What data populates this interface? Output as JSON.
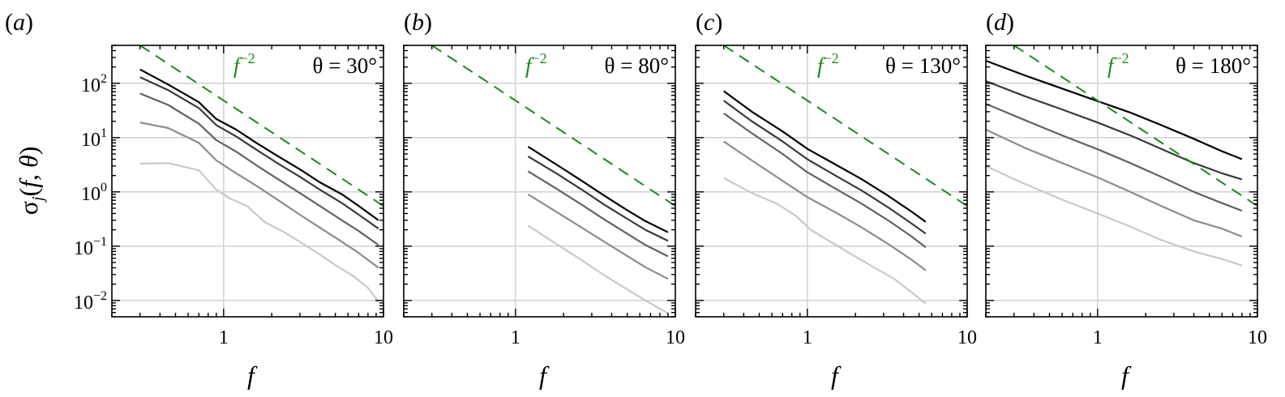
{
  "figure": {
    "ylabel": "σj(f, θ)",
    "xlabel": "f"
  },
  "colors": {
    "reference_line": "#1a8a1a",
    "series": [
      "#000000",
      "#3a3a3a",
      "#626262",
      "#8c8c8c",
      "#c9c9c9"
    ],
    "grid": "#d4d4d4"
  },
  "chart_data": [
    {
      "type": "line",
      "panel_label": "(a)",
      "theta_label": "θ = 30°",
      "ref_label": "f−2",
      "xlabel": "f",
      "ylabel": "σj(f, θ)",
      "xscale": "log",
      "yscale": "log",
      "xlim": [
        0.2,
        10
      ],
      "ylim": [
        0.005,
        500
      ],
      "xticks": [
        1,
        10
      ],
      "xtick_labels": [
        "1",
        "10"
      ],
      "yticks": [
        0.01,
        0.1,
        1,
        10,
        100
      ],
      "ytick_labels": [
        [
          "10",
          "−2"
        ],
        [
          "10",
          "−1"
        ],
        [
          "10",
          "0"
        ],
        [
          "10",
          "1"
        ],
        [
          "10",
          "2"
        ]
      ],
      "grid": true,
      "reference": {
        "label": "f−2",
        "exponent": -2,
        "points": [
          [
            0.3,
            500
          ],
          [
            10,
            0.55
          ]
        ]
      },
      "series": [
        {
          "x": [
            0.3,
            0.45,
            0.7,
            0.9,
            1.2,
            1.6,
            2.2,
            3.0,
            4.0,
            5.5,
            7.0,
            9.3
          ],
          "y": [
            180,
            95,
            45,
            22,
            14,
            8,
            4.5,
            2.6,
            1.5,
            0.9,
            0.55,
            0.3
          ]
        },
        {
          "x": [
            0.3,
            0.45,
            0.7,
            0.9,
            1.2,
            1.6,
            2.2,
            3.0,
            4.0,
            5.5,
            7.0,
            9.3
          ],
          "y": [
            130,
            75,
            35,
            17,
            10.5,
            6,
            3.3,
            1.9,
            1.1,
            0.62,
            0.38,
            0.21
          ]
        },
        {
          "x": [
            0.3,
            0.45,
            0.7,
            0.9,
            1.2,
            1.6,
            2.2,
            3.0,
            4.0,
            5.5,
            7.0,
            9.3
          ],
          "y": [
            65,
            40,
            18,
            9,
            5.5,
            3.1,
            1.7,
            0.95,
            0.55,
            0.3,
            0.19,
            0.105
          ]
        },
        {
          "x": [
            0.3,
            0.45,
            0.7,
            0.9,
            1.2,
            1.6,
            2.2,
            3.0,
            4.0,
            5.5,
            7.0,
            9.3
          ],
          "y": [
            19,
            15,
            8,
            3.8,
            2.2,
            1.3,
            0.7,
            0.38,
            0.22,
            0.12,
            0.075,
            0.04
          ]
        },
        {
          "x": [
            0.3,
            0.45,
            0.7,
            0.9,
            1.1,
            1.4,
            1.8,
            2.4,
            3.0,
            4.0,
            5.0,
            6.5,
            8.0,
            9.3
          ],
          "y": [
            3.3,
            3.4,
            2.5,
            1.1,
            0.75,
            0.55,
            0.28,
            0.18,
            0.12,
            0.07,
            0.045,
            0.028,
            0.017,
            0.0095
          ]
        }
      ]
    },
    {
      "type": "line",
      "panel_label": "(b)",
      "theta_label": "θ = 80°",
      "ref_label": "f−2",
      "xlabel": "f",
      "xscale": "log",
      "yscale": "log",
      "xlim": [
        0.2,
        10
      ],
      "ylim": [
        0.005,
        500
      ],
      "xticks": [
        1,
        10
      ],
      "xtick_labels": [
        "1",
        "10"
      ],
      "grid": true,
      "reference": {
        "label": "f−2",
        "exponent": -2,
        "points": [
          [
            0.3,
            500
          ],
          [
            10,
            0.55
          ]
        ]
      },
      "series": [
        {
          "x": [
            1.2,
            1.8,
            2.6,
            3.6,
            5.0,
            6.5,
            9.0
          ],
          "y": [
            6.8,
            3.2,
            1.6,
            0.85,
            0.46,
            0.29,
            0.18
          ]
        },
        {
          "x": [
            1.2,
            1.8,
            2.6,
            3.6,
            5.0,
            6.5,
            9.0
          ],
          "y": [
            4.5,
            2.2,
            1.1,
            0.58,
            0.32,
            0.2,
            0.125
          ]
        },
        {
          "x": [
            1.2,
            1.8,
            2.6,
            3.6,
            5.0,
            6.5,
            9.0
          ],
          "y": [
            2.4,
            1.15,
            0.58,
            0.31,
            0.17,
            0.105,
            0.065
          ]
        },
        {
          "x": [
            1.2,
            1.8,
            2.6,
            3.6,
            5.0,
            6.5,
            9.0
          ],
          "y": [
            0.9,
            0.43,
            0.22,
            0.12,
            0.066,
            0.041,
            0.025
          ]
        },
        {
          "x": [
            1.2,
            1.8,
            2.6,
            3.6,
            5.0,
            6.5,
            9.0
          ],
          "y": [
            0.24,
            0.11,
            0.055,
            0.029,
            0.016,
            0.01,
            0.0058
          ]
        }
      ]
    },
    {
      "type": "line",
      "panel_label": "(c)",
      "theta_label": "θ = 130°",
      "ref_label": "f−2",
      "xlabel": "f",
      "xscale": "log",
      "yscale": "log",
      "xlim": [
        0.2,
        10
      ],
      "ylim": [
        0.005,
        500
      ],
      "xticks": [
        1,
        10
      ],
      "xtick_labels": [
        "1",
        "10"
      ],
      "grid": true,
      "reference": {
        "label": "f−2",
        "exponent": -2,
        "points": [
          [
            0.3,
            500
          ],
          [
            10,
            0.55
          ]
        ]
      },
      "series": [
        {
          "x": [
            0.3,
            0.45,
            0.7,
            1.0,
            1.5,
            2.2,
            3.2,
            4.5,
            5.5
          ],
          "y": [
            72,
            30,
            13,
            6.2,
            3.2,
            1.7,
            0.85,
            0.43,
            0.28
          ]
        },
        {
          "x": [
            0.3,
            0.45,
            0.7,
            1.0,
            1.5,
            2.2,
            3.2,
            4.5,
            5.5
          ],
          "y": [
            48,
            20,
            8.5,
            4.0,
            2.0,
            1.05,
            0.52,
            0.26,
            0.17
          ]
        },
        {
          "x": [
            0.3,
            0.45,
            0.7,
            1.0,
            1.5,
            2.2,
            3.2,
            4.5,
            5.5
          ],
          "y": [
            28,
            12,
            5,
            2.3,
            1.15,
            0.6,
            0.3,
            0.15,
            0.095
          ]
        },
        {
          "x": [
            0.3,
            0.45,
            0.7,
            1.0,
            1.5,
            2.2,
            3.2,
            4.5,
            5.5
          ],
          "y": [
            8.5,
            3.8,
            1.6,
            0.8,
            0.42,
            0.22,
            0.11,
            0.056,
            0.036
          ]
        },
        {
          "x": [
            0.3,
            0.45,
            0.65,
            0.85,
            1.05,
            1.4,
            1.9,
            2.6,
            3.5,
            4.5,
            5.5
          ],
          "y": [
            1.8,
            0.95,
            0.6,
            0.36,
            0.2,
            0.12,
            0.07,
            0.041,
            0.025,
            0.014,
            0.0088
          ]
        }
      ]
    },
    {
      "type": "line",
      "panel_label": "(d)",
      "theta_label": "θ = 180°",
      "ref_label": "f−2",
      "xlabel": "f",
      "xscale": "log",
      "yscale": "log",
      "xlim": [
        0.2,
        10
      ],
      "ylim": [
        0.005,
        500
      ],
      "xticks": [
        1,
        10
      ],
      "xtick_labels": [
        "1",
        "10"
      ],
      "grid": true,
      "reference": {
        "label": "f−2",
        "exponent": -2,
        "points": [
          [
            0.3,
            500
          ],
          [
            10,
            0.55
          ]
        ]
      },
      "series": [
        {
          "x": [
            0.2,
            0.35,
            0.6,
            1.0,
            1.6,
            2.5,
            4.0,
            6.0,
            8.0
          ],
          "y": [
            260,
            140,
            80,
            47,
            29,
            17,
            9.5,
            5.6,
            4.0
          ]
        },
        {
          "x": [
            0.2,
            0.35,
            0.6,
            1.0,
            1.6,
            2.5,
            4.0,
            6.0,
            8.0
          ],
          "y": [
            110,
            58,
            33,
            19,
            11,
            6.2,
            3.4,
            2.2,
            1.7
          ]
        },
        {
          "x": [
            0.2,
            0.35,
            0.6,
            1.0,
            1.6,
            2.5,
            4.0,
            6.0,
            8.0
          ],
          "y": [
            42,
            21,
            11,
            6.1,
            3.4,
            1.9,
            1.0,
            0.62,
            0.45
          ]
        },
        {
          "x": [
            0.2,
            0.35,
            0.6,
            1.0,
            1.6,
            2.5,
            4.0,
            6.0,
            8.0
          ],
          "y": [
            14,
            6.5,
            3.4,
            1.85,
            1.0,
            0.55,
            0.3,
            0.21,
            0.15
          ]
        },
        {
          "x": [
            0.2,
            0.35,
            0.6,
            1.0,
            1.6,
            2.5,
            4.0,
            6.0,
            8.0
          ],
          "y": [
            3.0,
            1.4,
            0.72,
            0.4,
            0.23,
            0.13,
            0.08,
            0.058,
            0.044
          ]
        }
      ]
    }
  ]
}
